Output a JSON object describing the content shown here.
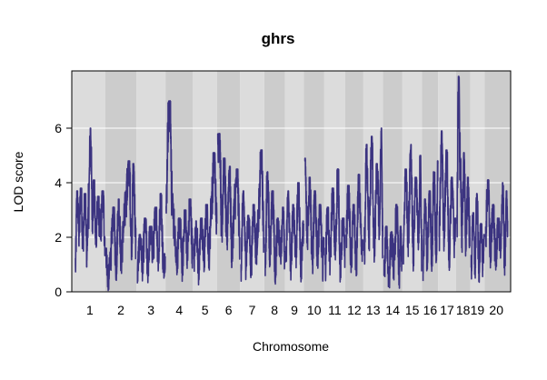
{
  "chart_data": {
    "type": "line",
    "title": "ghrs",
    "xlabel": "Chromosome",
    "ylabel": "LOD score",
    "ylim": [
      0,
      8.1
    ],
    "yticks": [
      0,
      2,
      4,
      6
    ],
    "grid": "horizontal",
    "series_color": "#3b3380",
    "band_colors": [
      "#dcdcdc",
      "#cccccc"
    ],
    "chromosomes": [
      {
        "name": "1",
        "length": 95,
        "peaks": [
          [
            3,
            1.0
          ],
          [
            8,
            3.6
          ],
          [
            14,
            2.2
          ],
          [
            20,
            3.7
          ],
          [
            26,
            2.0
          ],
          [
            33,
            3.5
          ],
          [
            38,
            1.5
          ],
          [
            43,
            3.0
          ],
          [
            50,
            5.9
          ],
          [
            55,
            2.8
          ],
          [
            60,
            4.0
          ],
          [
            66,
            2.0
          ],
          [
            72,
            3.4
          ],
          [
            80,
            2.2
          ],
          [
            88,
            3.6
          ],
          [
            94,
            2.0
          ]
        ]
      },
      {
        "name": "2",
        "length": 97,
        "peaks": [
          [
            2,
            1.5
          ],
          [
            10,
            0.4
          ],
          [
            18,
            1.5
          ],
          [
            26,
            3.0
          ],
          [
            34,
            1.0
          ],
          [
            42,
            3.3
          ],
          [
            50,
            1.2
          ],
          [
            58,
            2.5
          ],
          [
            66,
            3.6
          ],
          [
            74,
            4.7
          ],
          [
            82,
            2.0
          ],
          [
            88,
            4.6
          ],
          [
            95,
            1.8
          ]
        ]
      },
      {
        "name": "3",
        "length": 90,
        "peaks": [
          [
            3,
            0.8
          ],
          [
            11,
            2.0
          ],
          [
            19,
            1.0
          ],
          [
            27,
            2.6
          ],
          [
            35,
            0.9
          ],
          [
            43,
            2.3
          ],
          [
            51,
            1.5
          ],
          [
            60,
            3.0
          ],
          [
            68,
            1.2
          ],
          [
            75,
            3.5
          ],
          [
            84,
            1.0
          ],
          [
            89,
            1.3
          ]
        ]
      },
      {
        "name": "4",
        "length": 85,
        "peaks": [
          [
            2,
            3.0
          ],
          [
            8,
            6.1
          ],
          [
            14,
            6.9
          ],
          [
            20,
            3.5
          ],
          [
            28,
            2.3
          ],
          [
            35,
            1.2
          ],
          [
            44,
            2.6
          ],
          [
            52,
            1.0
          ],
          [
            60,
            2.9
          ],
          [
            68,
            1.5
          ],
          [
            76,
            3.3
          ],
          [
            84,
            1.5
          ]
        ]
      },
      {
        "name": "5",
        "length": 75,
        "peaks": [
          [
            3,
            1.2
          ],
          [
            10,
            2.5
          ],
          [
            18,
            0.8
          ],
          [
            26,
            2.6
          ],
          [
            34,
            1.2
          ],
          [
            42,
            3.1
          ],
          [
            50,
            1.5
          ],
          [
            58,
            3.4
          ],
          [
            66,
            5.0
          ],
          [
            74,
            2.5
          ]
        ]
      },
      {
        "name": "6",
        "length": 71,
        "peaks": [
          [
            2,
            5.6
          ],
          [
            8,
            5.7
          ],
          [
            14,
            2.5
          ],
          [
            22,
            4.8
          ],
          [
            30,
            2.0
          ],
          [
            38,
            4.5
          ],
          [
            46,
            1.5
          ],
          [
            54,
            3.3
          ],
          [
            62,
            4.4
          ],
          [
            70,
            2.0
          ]
        ]
      },
      {
        "name": "7",
        "length": 75,
        "peaks": [
          [
            3,
            1.0
          ],
          [
            10,
            3.6
          ],
          [
            18,
            1.2
          ],
          [
            26,
            2.7
          ],
          [
            34,
            1.0
          ],
          [
            42,
            3.1
          ],
          [
            50,
            1.6
          ],
          [
            58,
            2.9
          ],
          [
            66,
            5.1
          ],
          [
            74,
            2.0
          ]
        ]
      },
      {
        "name": "8",
        "length": 64,
        "peaks": [
          [
            3,
            1.3
          ],
          [
            10,
            4.3
          ],
          [
            18,
            1.5
          ],
          [
            26,
            3.6
          ],
          [
            34,
            0.9
          ],
          [
            42,
            2.6
          ],
          [
            50,
            1.5
          ],
          [
            58,
            3.0
          ],
          [
            63,
            1.5
          ]
        ]
      },
      {
        "name": "9",
        "length": 59,
        "peaks": [
          [
            3,
            1.1
          ],
          [
            10,
            3.6
          ],
          [
            18,
            1.0
          ],
          [
            26,
            3.1
          ],
          [
            34,
            1.5
          ],
          [
            42,
            3.9
          ],
          [
            50,
            1.0
          ],
          [
            58,
            2.5
          ]
        ]
      },
      {
        "name": "10",
        "length": 63,
        "peaks": [
          [
            3,
            4.8
          ],
          [
            10,
            2.2
          ],
          [
            18,
            4.1
          ],
          [
            26,
            1.2
          ],
          [
            34,
            3.6
          ],
          [
            42,
            1.5
          ],
          [
            50,
            3.1
          ],
          [
            58,
            1.0
          ],
          [
            62,
            2.0
          ]
        ]
      },
      {
        "name": "11",
        "length": 65,
        "peaks": [
          [
            3,
            1.0
          ],
          [
            10,
            3.0
          ],
          [
            18,
            1.2
          ],
          [
            26,
            3.7
          ],
          [
            34,
            1.5
          ],
          [
            42,
            4.4
          ],
          [
            50,
            1.0
          ],
          [
            58,
            2.6
          ],
          [
            64,
            1.5
          ]
        ]
      },
      {
        "name": "12",
        "length": 56,
        "peaks": [
          [
            3,
            2.2
          ],
          [
            10,
            3.8
          ],
          [
            18,
            1.2
          ],
          [
            26,
            3.1
          ],
          [
            34,
            1.0
          ],
          [
            42,
            4.2
          ],
          [
            50,
            1.6
          ],
          [
            55,
            1.8
          ]
        ]
      },
      {
        "name": "13",
        "length": 61,
        "peaks": [
          [
            3,
            1.5
          ],
          [
            10,
            5.3
          ],
          [
            18,
            2.2
          ],
          [
            26,
            5.6
          ],
          [
            34,
            1.5
          ],
          [
            42,
            4.6
          ],
          [
            50,
            2.5
          ],
          [
            56,
            5.9
          ],
          [
            60,
            2.0
          ]
        ]
      },
      {
        "name": "14",
        "length": 60,
        "peaks": [
          [
            3,
            0.6
          ],
          [
            10,
            2.3
          ],
          [
            18,
            0.5
          ],
          [
            26,
            2.1
          ],
          [
            34,
            0.9
          ],
          [
            42,
            3.1
          ],
          [
            50,
            0.6
          ],
          [
            55,
            2.3
          ],
          [
            59,
            1.0
          ]
        ]
      },
      {
        "name": "15",
        "length": 61,
        "peaks": [
          [
            3,
            1.5
          ],
          [
            10,
            4.4
          ],
          [
            18,
            2.2
          ],
          [
            26,
            5.3
          ],
          [
            34,
            1.5
          ],
          [
            42,
            4.1
          ],
          [
            50,
            2.2
          ],
          [
            56,
            4.9
          ],
          [
            60,
            1.5
          ]
        ]
      },
      {
        "name": "16",
        "length": 50,
        "peaks": [
          [
            3,
            1.0
          ],
          [
            9,
            3.3
          ],
          [
            16,
            1.3
          ],
          [
            23,
            3.6
          ],
          [
            30,
            1.5
          ],
          [
            37,
            4.3
          ],
          [
            44,
            1.5
          ],
          [
            49,
            4.7
          ]
        ]
      },
      {
        "name": "17",
        "length": 55,
        "peaks": [
          [
            3,
            2.0
          ],
          [
            10,
            5.8
          ],
          [
            18,
            2.2
          ],
          [
            26,
            5.1
          ],
          [
            34,
            1.5
          ],
          [
            42,
            4.1
          ],
          [
            50,
            2.0
          ],
          [
            54,
            2.6
          ]
        ]
      },
      {
        "name": "18",
        "length": 44,
        "peaks": [
          [
            3,
            2.5
          ],
          [
            8,
            7.8
          ],
          [
            13,
            4.8
          ],
          [
            19,
            2.2
          ],
          [
            25,
            5.0
          ],
          [
            31,
            1.8
          ],
          [
            37,
            4.1
          ],
          [
            43,
            2.0
          ]
        ]
      },
      {
        "name": "19",
        "length": 45,
        "peaks": [
          [
            3,
            0.9
          ],
          [
            9,
            2.8
          ],
          [
            15,
            1.0
          ],
          [
            21,
            3.5
          ],
          [
            27,
            0.9
          ],
          [
            33,
            2.4
          ],
          [
            39,
            1.2
          ],
          [
            44,
            2.0
          ]
        ]
      },
      {
        "name": "20",
        "length": 72,
        "peaks": [
          [
            3,
            2.2
          ],
          [
            10,
            4.0
          ],
          [
            18,
            1.5
          ],
          [
            26,
            3.1
          ],
          [
            34,
            1.2
          ],
          [
            42,
            2.6
          ],
          [
            50,
            1.5
          ],
          [
            56,
            3.9
          ],
          [
            62,
            1.0
          ],
          [
            68,
            3.6
          ],
          [
            71,
            2.6
          ]
        ]
      }
    ]
  }
}
